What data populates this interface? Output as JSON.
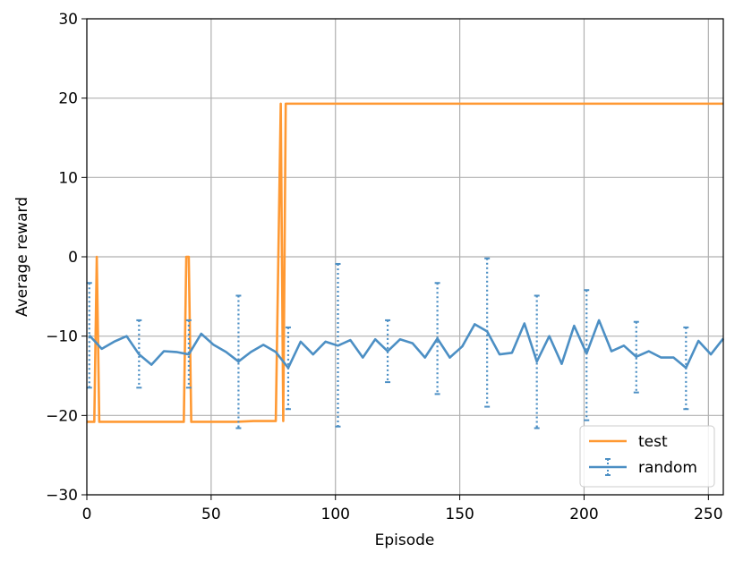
{
  "chart_data": {
    "type": "line",
    "xlabel": "Episode",
    "ylabel": "Average reward",
    "xlim": [
      0,
      256
    ],
    "ylim": [
      -30,
      30
    ],
    "xticks": [
      0,
      50,
      100,
      150,
      200,
      250
    ],
    "yticks": [
      -30,
      -20,
      -10,
      0,
      10,
      20,
      30
    ],
    "grid": true,
    "legend_position": "lower-right",
    "series": [
      {
        "name": "test",
        "color": "#ff9933",
        "points": [
          [
            0,
            -20.8
          ],
          [
            3,
            -20.8
          ],
          [
            4,
            0
          ],
          [
            5,
            -20.8
          ],
          [
            10,
            -20.8
          ],
          [
            20,
            -20.8
          ],
          [
            30,
            -20.8
          ],
          [
            39,
            -20.8
          ],
          [
            40,
            0
          ],
          [
            41,
            0
          ],
          [
            42,
            -20.8
          ],
          [
            50,
            -20.8
          ],
          [
            60,
            -20.8
          ],
          [
            67,
            -20.7
          ],
          [
            70,
            -20.7
          ],
          [
            76,
            -20.7
          ],
          [
            78,
            19.3
          ],
          [
            79,
            -20.7
          ],
          [
            80,
            19.3
          ],
          [
            100,
            19.3
          ],
          [
            150,
            19.3
          ],
          [
            200,
            19.3
          ],
          [
            256,
            19.3
          ]
        ]
      },
      {
        "name": "random",
        "color": "#4c8fc4",
        "points": [
          [
            1,
            -9.9
          ],
          [
            6,
            -11.6
          ],
          [
            11,
            -10.7
          ],
          [
            16,
            -10.0
          ],
          [
            21,
            -12.3
          ],
          [
            26,
            -13.6
          ],
          [
            31,
            -11.9
          ],
          [
            36,
            -12.0
          ],
          [
            41,
            -12.3
          ],
          [
            46,
            -9.7
          ],
          [
            51,
            -11.1
          ],
          [
            56,
            -12.0
          ],
          [
            61,
            -13.2
          ],
          [
            66,
            -12.0
          ],
          [
            71,
            -11.1
          ],
          [
            76,
            -12.0
          ],
          [
            81,
            -14.0
          ],
          [
            86,
            -10.7
          ],
          [
            91,
            -12.3
          ],
          [
            96,
            -10.7
          ],
          [
            101,
            -11.2
          ],
          [
            106,
            -10.5
          ],
          [
            111,
            -12.7
          ],
          [
            116,
            -10.4
          ],
          [
            121,
            -11.9
          ],
          [
            126,
            -10.4
          ],
          [
            131,
            -10.9
          ],
          [
            136,
            -12.7
          ],
          [
            141,
            -10.3
          ],
          [
            146,
            -12.7
          ],
          [
            151,
            -11.3
          ],
          [
            156,
            -8.5
          ],
          [
            161,
            -9.4
          ],
          [
            166,
            -12.3
          ],
          [
            171,
            -12.1
          ],
          [
            176,
            -8.4
          ],
          [
            181,
            -13.2
          ],
          [
            186,
            -10.0
          ],
          [
            191,
            -13.5
          ],
          [
            196,
            -8.7
          ],
          [
            201,
            -12.2
          ],
          [
            206,
            -8.0
          ],
          [
            211,
            -11.9
          ],
          [
            216,
            -11.2
          ],
          [
            221,
            -12.6
          ],
          [
            226,
            -11.9
          ],
          [
            231,
            -12.7
          ],
          [
            236,
            -12.7
          ],
          [
            241,
            -14.0
          ],
          [
            246,
            -10.6
          ],
          [
            251,
            -12.3
          ],
          [
            256,
            -10.3
          ]
        ],
        "errorbars": [
          [
            1,
            -3.3,
            -16.5
          ],
          [
            21,
            -8.0,
            -16.5
          ],
          [
            41,
            -8.0,
            -16.5
          ],
          [
            61,
            -4.9,
            -21.6
          ],
          [
            81,
            -8.9,
            -19.2
          ],
          [
            101,
            -0.9,
            -21.4
          ],
          [
            121,
            -8.0,
            -15.8
          ],
          [
            141,
            -3.3,
            -17.3
          ],
          [
            161,
            -0.2,
            -18.9
          ],
          [
            181,
            -4.9,
            -21.6
          ],
          [
            201,
            -4.2,
            -20.6
          ],
          [
            221,
            -8.2,
            -17.1
          ],
          [
            241,
            -8.9,
            -19.2
          ]
        ]
      }
    ]
  }
}
